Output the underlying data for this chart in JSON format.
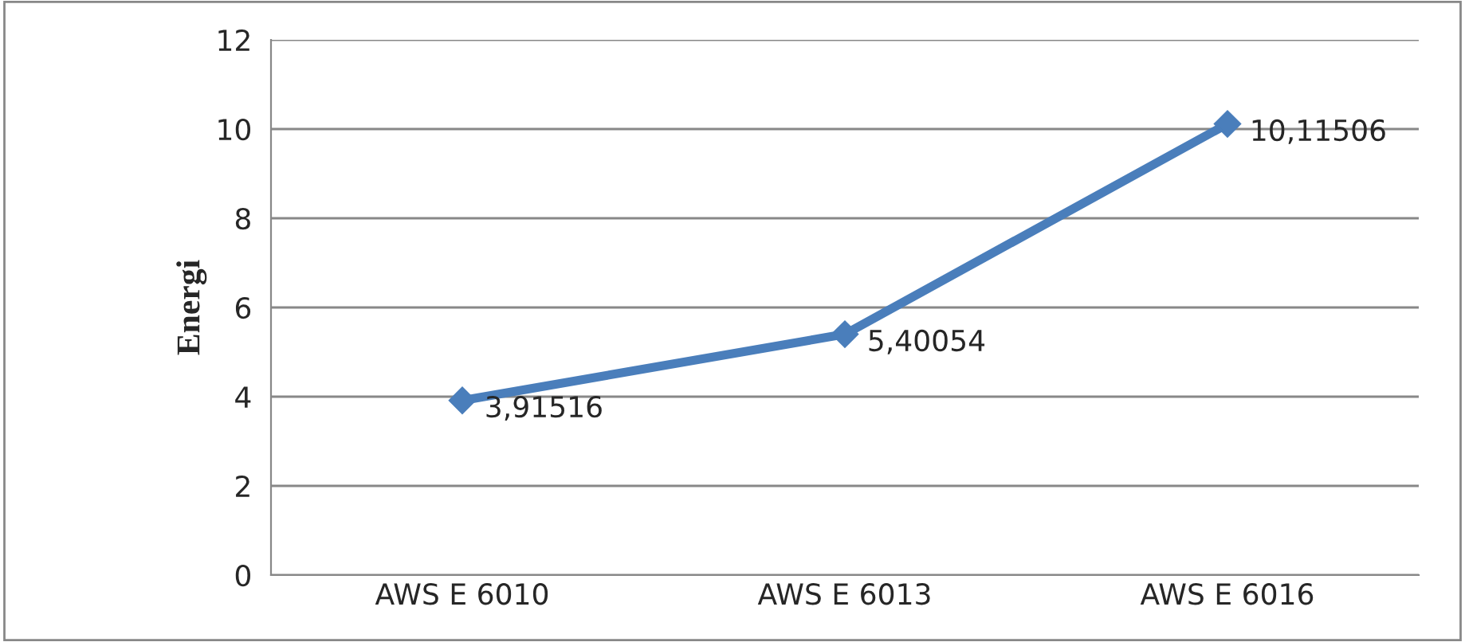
{
  "chart_data": {
    "type": "line",
    "ylabel": "Energi",
    "categories": [
      "AWS E 6010",
      "AWS E 6013",
      "AWS E 6016"
    ],
    "series": [
      {
        "color": "#4a7ebb",
        "values": [
          3.91516,
          5.40054,
          10.11506
        ],
        "value_labels": [
          "3,91516",
          "5,40054",
          "10,11506"
        ]
      }
    ],
    "ylim": [
      0,
      12
    ],
    "yticks": [
      0,
      2,
      4,
      6,
      8,
      10,
      12
    ],
    "grid": "y",
    "marker": "diamond",
    "line_style": "solid"
  }
}
